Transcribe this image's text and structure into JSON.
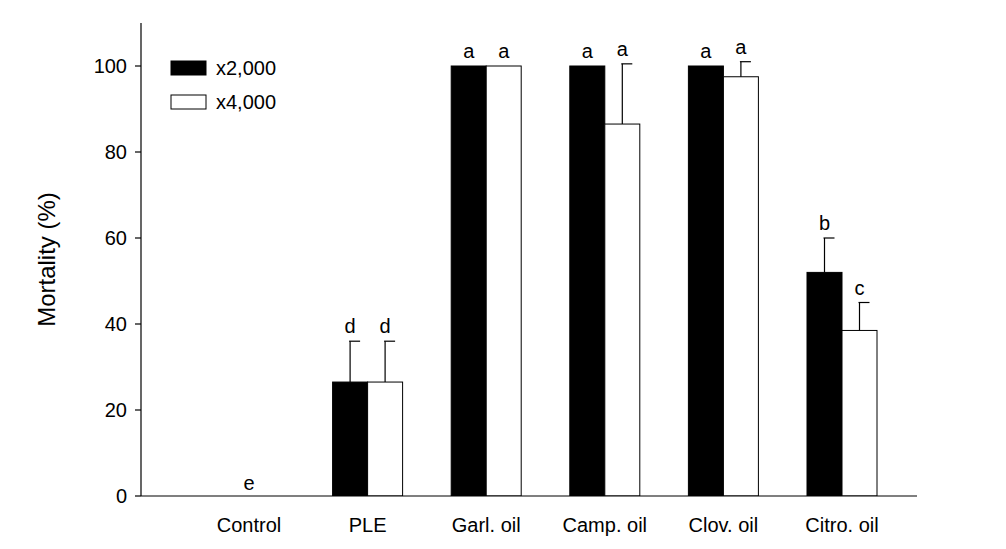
{
  "chart_data": {
    "type": "bar",
    "y_label": "Mortality (%)",
    "categories": [
      "Control",
      "PLE",
      "Garl. oil",
      "Camp. oil",
      "Clov. oil",
      "Citro. oil"
    ],
    "series": [
      {
        "name": "x2,000",
        "color": "#000000",
        "values": [
          0,
          26.5,
          100,
          100,
          100,
          52
        ],
        "errors": [
          0,
          9.5,
          0,
          0,
          0,
          8
        ],
        "letters": [
          null,
          "d",
          "a",
          "a",
          "a",
          "b"
        ]
      },
      {
        "name": "x4,000",
        "color": "#ffffff",
        "values": [
          0,
          26.5,
          100,
          86.5,
          97.5,
          38.5
        ],
        "errors": [
          0,
          9.5,
          0,
          14,
          3.5,
          6.5
        ],
        "letters": [
          null,
          "d",
          "a",
          "a",
          "a",
          "c"
        ]
      }
    ],
    "annotations": [
      {
        "text": "e",
        "x": "Control",
        "y": 0
      }
    ],
    "ylim": [
      0,
      110
    ],
    "yticks": [
      0,
      20,
      40,
      60,
      80,
      100
    ],
    "grid": false,
    "legend": "top-left"
  }
}
